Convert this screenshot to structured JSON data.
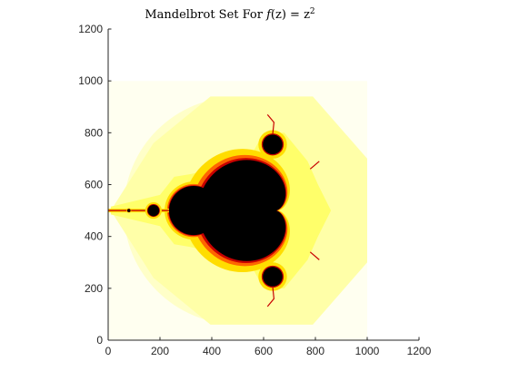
{
  "title": {
    "prefix": "Mandelbrot Set For ",
    "func": "f",
    "arg": "(z) = z",
    "exponent": "2"
  },
  "chart_data": {
    "type": "heatmap",
    "title": "Mandelbrot Set For f(z) = z^2",
    "xlim": [
      0,
      1200
    ],
    "ylim": [
      0,
      1200
    ],
    "x_ticks": [
      0,
      200,
      400,
      600,
      800,
      1000,
      1200
    ],
    "y_ticks": [
      0,
      200,
      400,
      600,
      800,
      1000,
      1200
    ],
    "x_tick_labels": [
      "0",
      "200",
      "400",
      "600",
      "800",
      "1000",
      "1200"
    ],
    "y_tick_labels": [
      "0",
      "200",
      "400",
      "600",
      "800",
      "1000",
      "1200"
    ],
    "image_extent": {
      "x": [
        0,
        1000
      ],
      "y": [
        0,
        1000
      ]
    },
    "colormap": "hot (reversed)",
    "colors": {
      "set_interior": "#000000",
      "boundary_red": "#c80000",
      "boundary_orange": "#ff6600",
      "boundary_yellow": "#ffdd00",
      "halo": "#ffff6a",
      "mid": "#ffffa8",
      "outer": "#ffffc8",
      "background": "#fffff0"
    },
    "features": {
      "main_cardioid_center": [
        610,
        500
      ],
      "period2_bulb_center": [
        330,
        500
      ],
      "period2_bulb_radius": 95,
      "small_bulbs": [
        {
          "center": [
            175,
            500
          ],
          "r": 22
        },
        {
          "center": [
            80,
            500
          ],
          "r": 6
        },
        {
          "center": [
            635,
            755
          ],
          "r": 38
        },
        {
          "center": [
            635,
            245
          ],
          "r": 38
        }
      ],
      "escape_circle_center": [
        500,
        500
      ],
      "escape_circle_radius": 440
    }
  }
}
